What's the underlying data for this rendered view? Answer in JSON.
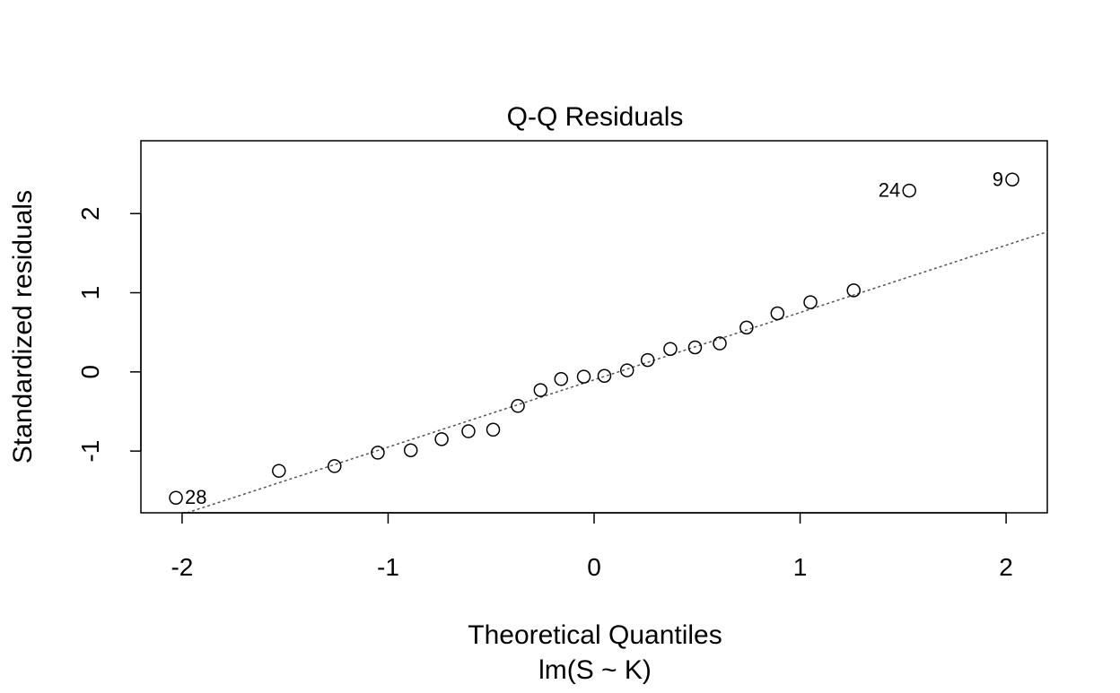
{
  "chart_data": {
    "type": "scatter",
    "title": "Q-Q Residuals",
    "xlabel": "Theoretical Quantiles",
    "subtitle": "lm(S ~ K)",
    "ylabel": "Standardized residuals",
    "xlim": [
      -2.2,
      2.2
    ],
    "ylim": [
      -1.78,
      2.92
    ],
    "xticks": [
      -2,
      -1,
      0,
      1,
      2
    ],
    "xtick_labels": [
      "-2",
      "-1",
      "0",
      "1",
      "2"
    ],
    "yticks": [
      -1,
      0,
      1,
      2
    ],
    "ytick_labels": [
      "-1",
      "0",
      "1",
      "2"
    ],
    "grid": false,
    "points": [
      {
        "x": -2.03,
        "y": -1.59,
        "label": "28"
      },
      {
        "x": -1.53,
        "y": -1.25,
        "label": ""
      },
      {
        "x": -1.26,
        "y": -1.19,
        "label": ""
      },
      {
        "x": -1.05,
        "y": -1.02,
        "label": ""
      },
      {
        "x": -0.89,
        "y": -0.99,
        "label": ""
      },
      {
        "x": -0.74,
        "y": -0.85,
        "label": ""
      },
      {
        "x": -0.61,
        "y": -0.75,
        "label": ""
      },
      {
        "x": -0.49,
        "y": -0.73,
        "label": ""
      },
      {
        "x": -0.37,
        "y": -0.43,
        "label": ""
      },
      {
        "x": -0.26,
        "y": -0.23,
        "label": ""
      },
      {
        "x": -0.16,
        "y": -0.09,
        "label": ""
      },
      {
        "x": -0.05,
        "y": -0.06,
        "label": ""
      },
      {
        "x": 0.05,
        "y": -0.05,
        "label": ""
      },
      {
        "x": 0.16,
        "y": 0.02,
        "label": ""
      },
      {
        "x": 0.26,
        "y": 0.15,
        "label": ""
      },
      {
        "x": 0.37,
        "y": 0.29,
        "label": ""
      },
      {
        "x": 0.49,
        "y": 0.31,
        "label": ""
      },
      {
        "x": 0.61,
        "y": 0.36,
        "label": ""
      },
      {
        "x": 0.74,
        "y": 0.56,
        "label": ""
      },
      {
        "x": 0.89,
        "y": 0.74,
        "label": ""
      },
      {
        "x": 1.05,
        "y": 0.88,
        "label": ""
      },
      {
        "x": 1.26,
        "y": 1.03,
        "label": ""
      },
      {
        "x": 1.53,
        "y": 2.29,
        "label": "24"
      },
      {
        "x": 2.03,
        "y": 2.43,
        "label": "9"
      }
    ],
    "reference_line": {
      "intercept": -0.1,
      "slope": 0.85,
      "style": "dotted",
      "color": "#555555"
    }
  }
}
